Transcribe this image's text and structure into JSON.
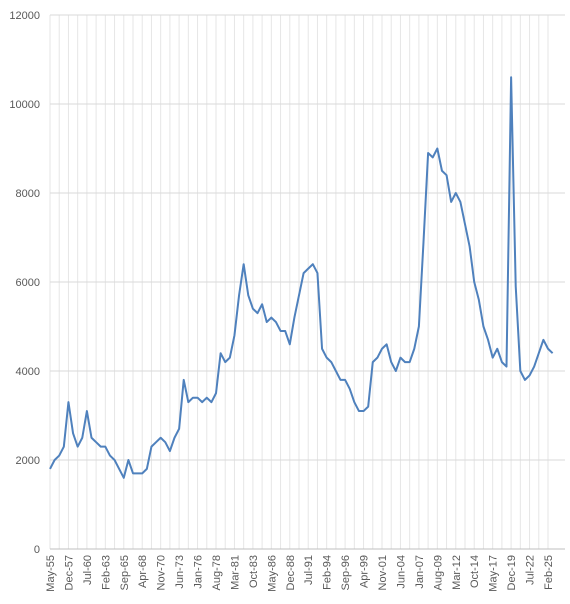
{
  "chart_data": {
    "type": "line",
    "categories": [
      "May-55",
      null,
      null,
      null,
      "Dec-57",
      null,
      null,
      null,
      "Jul-60",
      null,
      null,
      null,
      "Feb-63",
      null,
      null,
      null,
      "Sep-65",
      null,
      null,
      null,
      "Apr-68",
      null,
      null,
      null,
      "Nov-70",
      null,
      null,
      null,
      "Jun-73",
      null,
      null,
      null,
      "Jan-76",
      null,
      null,
      null,
      "Aug-78",
      null,
      null,
      null,
      "Mar-81",
      null,
      null,
      null,
      "Oct-83",
      null,
      null,
      null,
      "May-86",
      null,
      null,
      null,
      "Dec-88",
      null,
      null,
      null,
      "Jul-91",
      null,
      null,
      null,
      "Feb-94",
      null,
      null,
      null,
      "Sep-96",
      null,
      null,
      null,
      "Apr-99",
      null,
      null,
      null,
      "Nov-01",
      null,
      null,
      null,
      "Jun-04",
      null,
      null,
      null,
      "Jan-07",
      null,
      null,
      null,
      "Aug-09",
      null,
      null,
      null,
      "Mar-12",
      null,
      null,
      null,
      "Oct-14",
      null,
      null,
      null,
      "May-17",
      null,
      null,
      null,
      "Dec-19",
      null,
      null,
      null,
      "Jul-22",
      null,
      null,
      null,
      "Feb-25",
      null
    ],
    "series": [
      {
        "color": "#4f81bd",
        "values": [
          1800,
          2000,
          2100,
          2300,
          3300,
          2600,
          2300,
          2500,
          3100,
          2500,
          2400,
          2300,
          2300,
          2100,
          2000,
          1800,
          1600,
          2000,
          1700,
          1700,
          1700,
          1800,
          2300,
          2400,
          2500,
          2400,
          2200,
          2500,
          2700,
          3800,
          3300,
          3400,
          3400,
          3300,
          3400,
          3300,
          3500,
          4400,
          4200,
          4300,
          4800,
          5700,
          6400,
          5700,
          5400,
          5300,
          5500,
          5100,
          5200,
          5100,
          4900,
          4900,
          4600,
          5200,
          5700,
          6200,
          6300,
          6400,
          6200,
          4500,
          4300,
          4200,
          4000,
          3800,
          3800,
          3600,
          3300,
          3100,
          3100,
          3200,
          4200,
          4300,
          4500,
          4600,
          4200,
          4000,
          4300,
          4200,
          4200,
          4500,
          5000,
          6900,
          8900,
          8800,
          9000,
          8500,
          8400,
          7800,
          8000,
          7800,
          7300,
          6800,
          6000,
          5600,
          5000,
          4700,
          4300,
          4500,
          4200,
          4100,
          10600,
          5900,
          4000,
          3800,
          3900,
          4100,
          4400,
          4700,
          4500,
          4400
        ]
      }
    ],
    "ylim": [
      0,
      12000
    ],
    "yticks": [
      0,
      2000,
      4000,
      6000,
      8000,
      10000,
      12000
    ],
    "grid": true
  }
}
